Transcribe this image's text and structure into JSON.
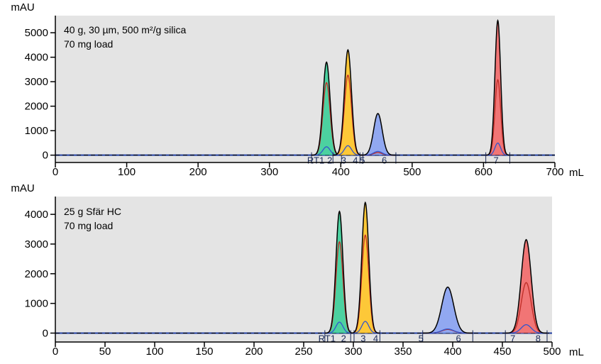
{
  "chart_data": [
    {
      "type": "line",
      "title": "",
      "xlabel": "mL",
      "ylabel": "mAU",
      "xlim": [
        0,
        700
      ],
      "ylim": [
        -300,
        5700
      ],
      "xticks": [
        0,
        100,
        200,
        300,
        400,
        500,
        600,
        700
      ],
      "yticks": [
        0,
        1000,
        2000,
        3000,
        4000,
        5000
      ],
      "grid": false,
      "annotation": [
        "40 g, 30 µm, 500 m²/g silica",
        "70 mg load"
      ],
      "peak_labels": [
        "RT1",
        "2",
        "3",
        "4",
        "5",
        "6",
        "7"
      ],
      "peaks": [
        {
          "center": 380,
          "height": 3800,
          "width": 5,
          "fill": "#3fcf9a",
          "red_fraction": 0.78
        },
        {
          "center": 410,
          "height": 4300,
          "width": 5,
          "fill": "#ffc629",
          "red_fraction": 0.76
        },
        {
          "center": 452,
          "height": 1700,
          "width": 6,
          "fill": "#8aa3f2",
          "red_fraction": 0.06
        },
        {
          "center": 620,
          "height": 5500,
          "width": 4,
          "fill": "#f26b6b",
          "red_fraction": 0.56
        }
      ],
      "baseline_color": "#1f3da0",
      "trace_color": "#000000"
    },
    {
      "type": "line",
      "title": "",
      "xlabel": "mL",
      "ylabel": "mAU",
      "xlim": [
        0,
        500
      ],
      "ylim": [
        -300,
        4600
      ],
      "xticks": [
        0,
        50,
        100,
        150,
        200,
        250,
        300,
        350,
        400,
        450,
        500
      ],
      "yticks": [
        0,
        1000,
        2000,
        3000,
        4000
      ],
      "grid": false,
      "annotation": [
        "25 g Sfär HC",
        "70 mg load"
      ],
      "peak_labels": [
        "RT1",
        "2",
        "3",
        "4",
        "5",
        "6",
        "7",
        "8"
      ],
      "peaks": [
        {
          "center": 286,
          "height": 4100,
          "width": 3.5,
          "fill": "#3fcf9a",
          "red_fraction": 0.75
        },
        {
          "center": 312,
          "height": 4400,
          "width": 3.5,
          "fill": "#ffc629",
          "red_fraction": 0.75
        },
        {
          "center": 395,
          "height": 1550,
          "width": 6,
          "fill": "#8aa3f2",
          "red_fraction": 0.08
        },
        {
          "center": 474,
          "height": 3150,
          "width": 5,
          "fill": "#f26b6b",
          "red_fraction": 0.54
        }
      ],
      "baseline_color": "#1f3da0",
      "trace_color": "#000000"
    }
  ]
}
